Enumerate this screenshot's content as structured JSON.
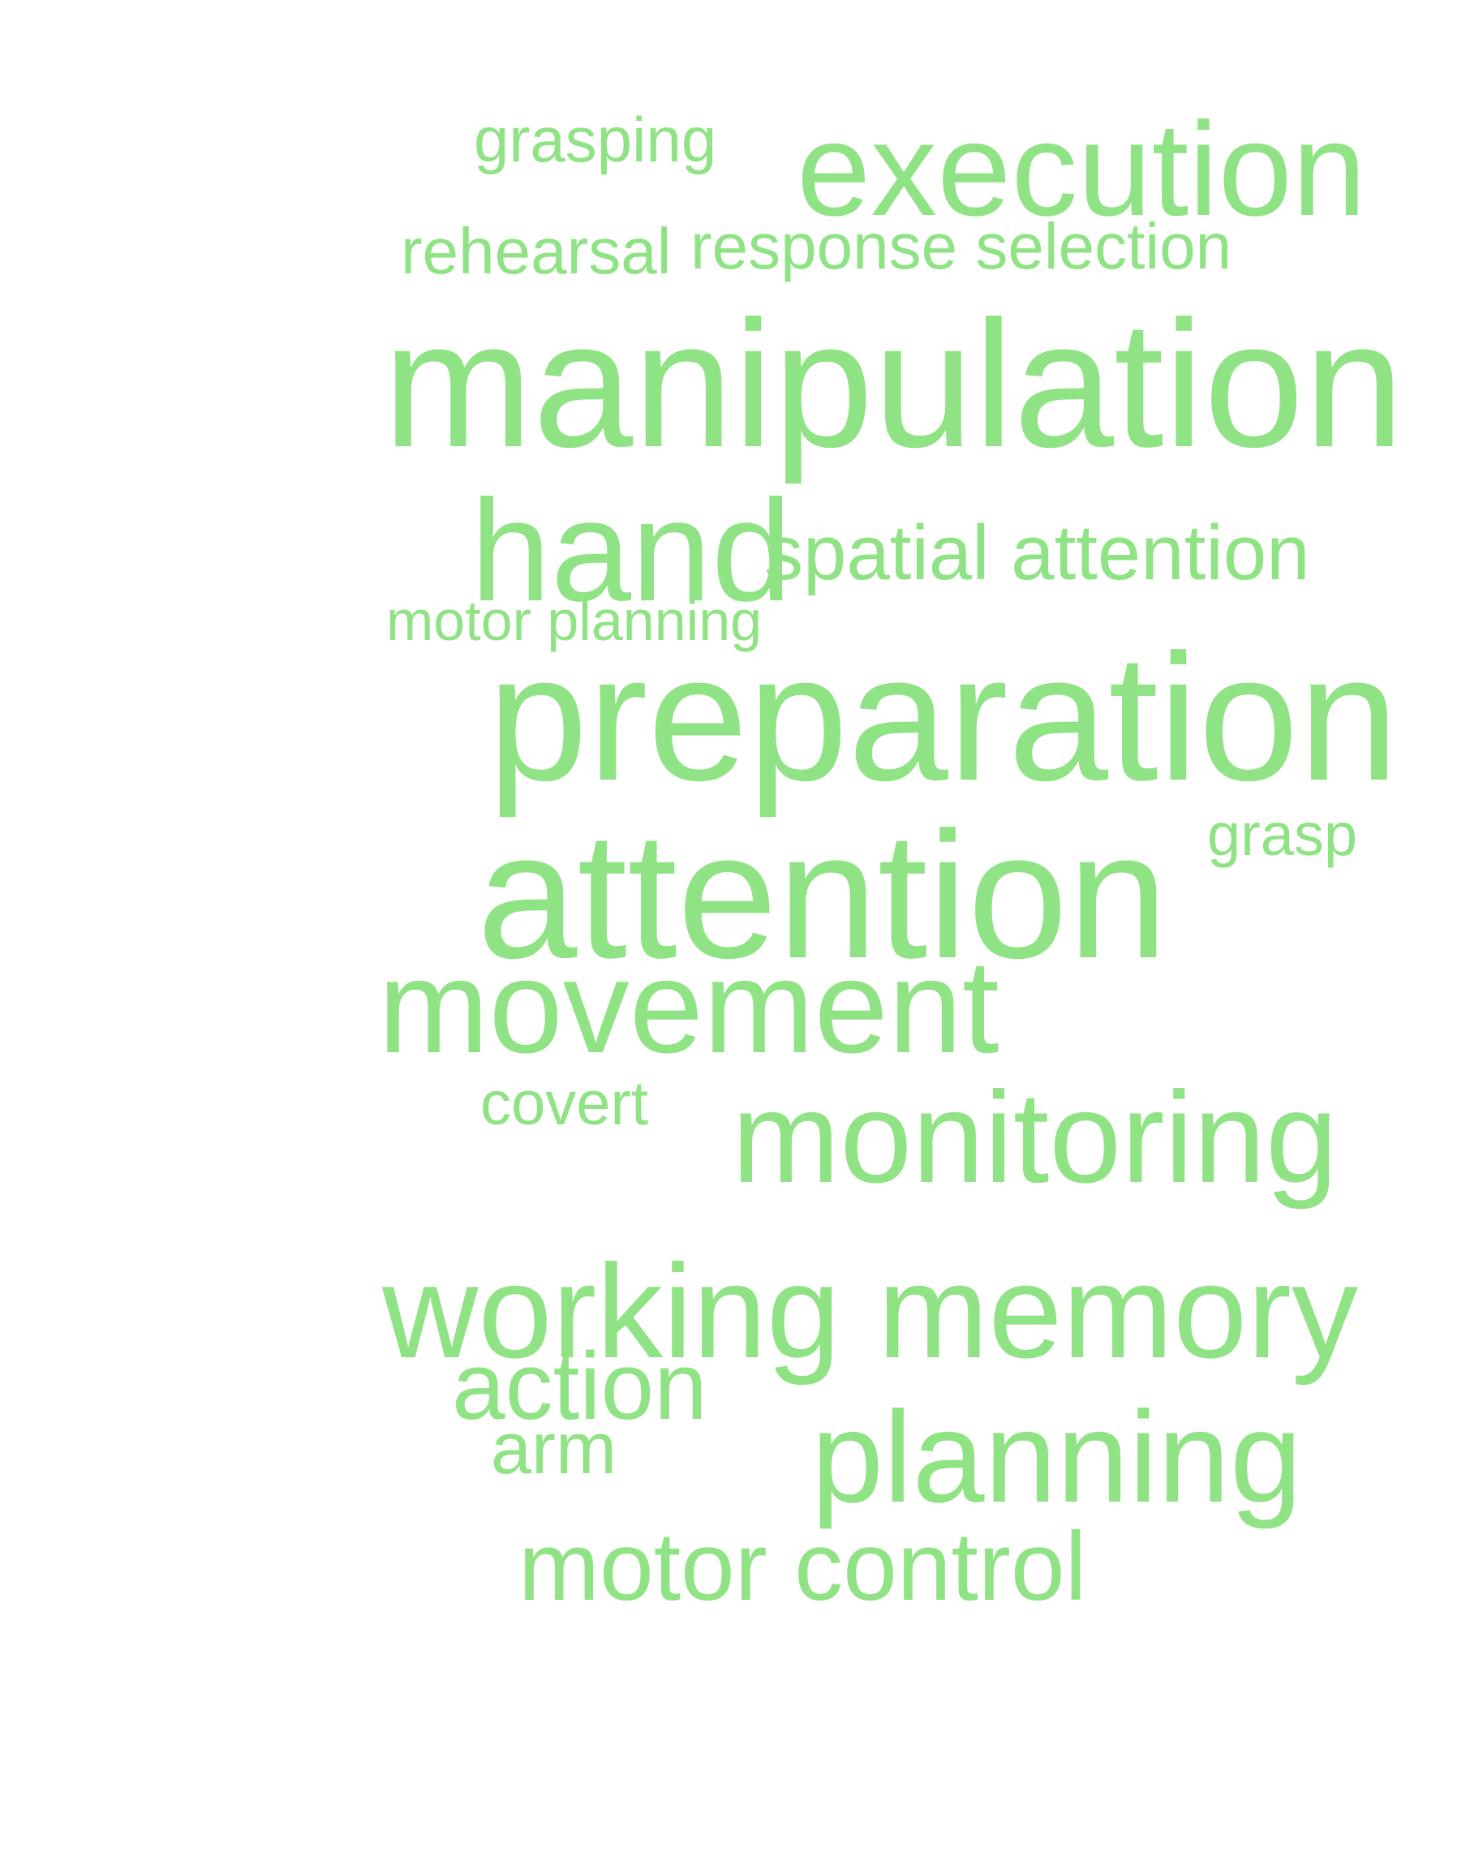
{
  "colors": {
    "word": "#90e384",
    "background": "#ffffff"
  },
  "words": [
    "grasping",
    "execution",
    "rehearsal",
    "response selection",
    "manipulation",
    "hand",
    "spatial attention",
    "motor planning",
    "preparation",
    "grasp",
    "attention",
    "movement",
    "covert",
    "monitoring",
    "working memory",
    "action",
    "arm",
    "planning",
    "motor control"
  ]
}
